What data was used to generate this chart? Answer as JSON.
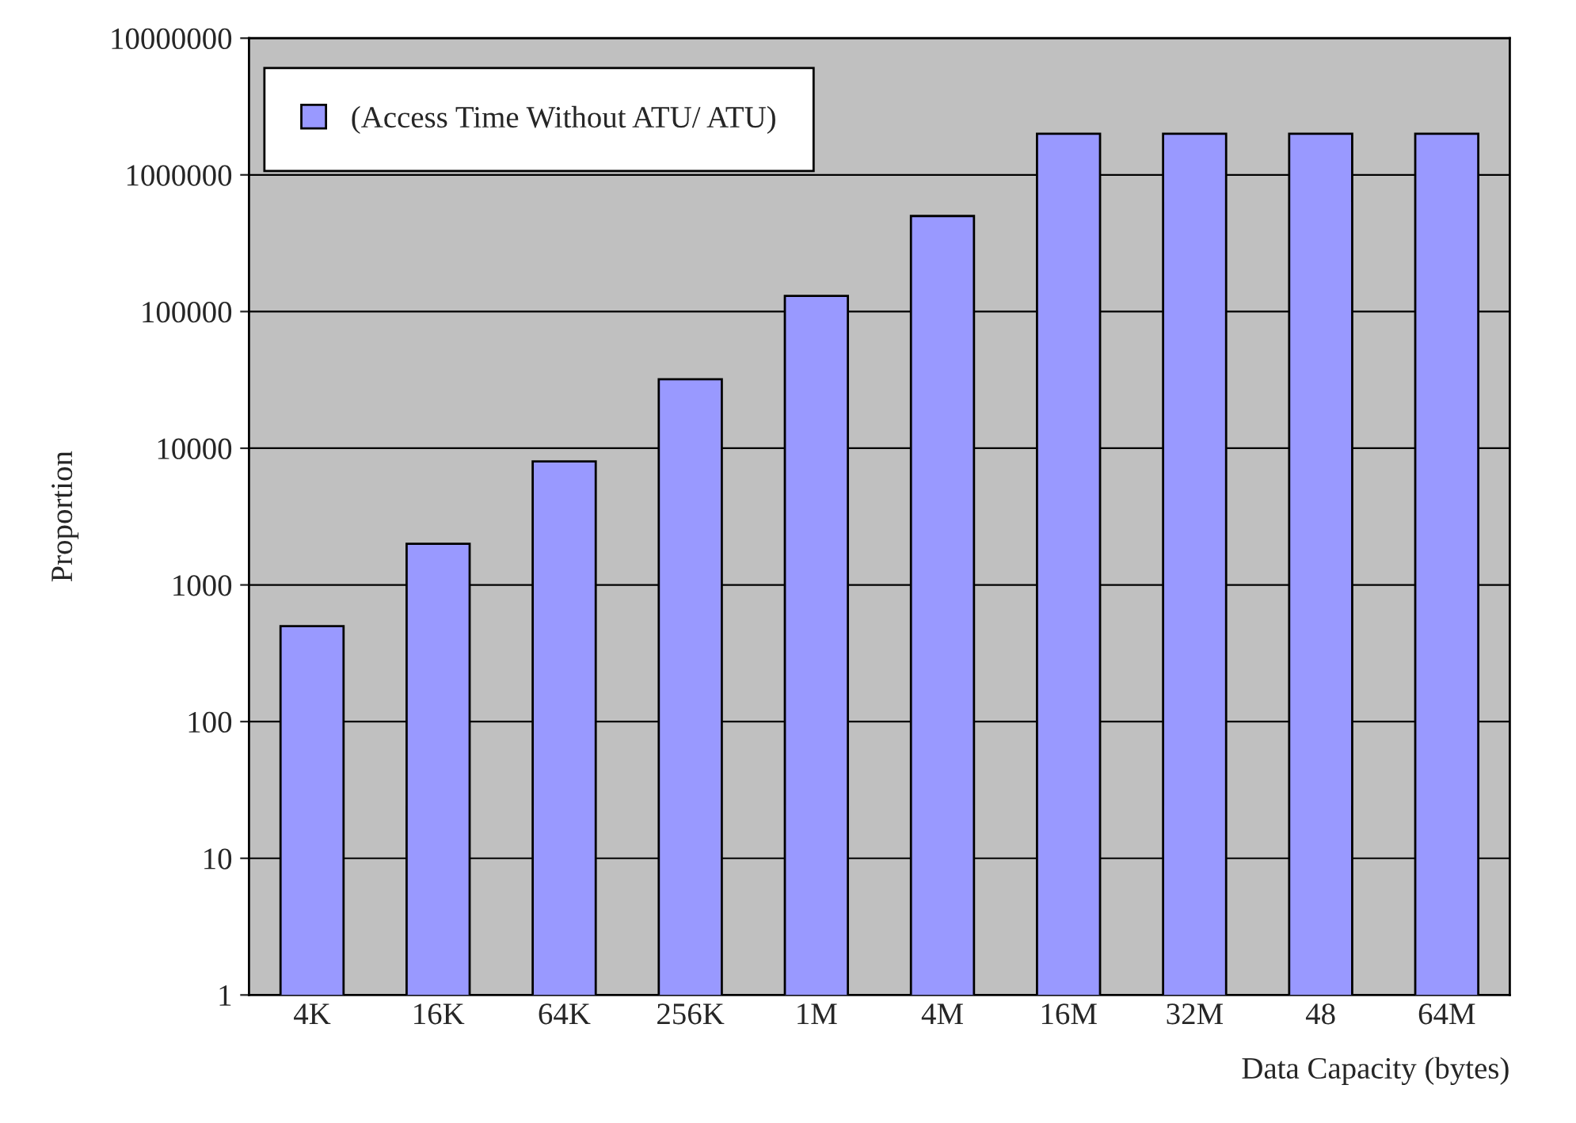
{
  "chart_data": {
    "type": "bar",
    "xlabel": "Data Capacity (bytes)",
    "ylabel": "Proportion",
    "categories": [
      "4K",
      "16K",
      "64K",
      "256K",
      "1M",
      "4M",
      "16M",
      "32M",
      "48",
      "64M"
    ],
    "series": [
      {
        "name": "(Access Time Without ATU/ ATU)",
        "color": "#9999ff",
        "values": [
          500,
          2000,
          8000,
          32000,
          130000,
          500000,
          2000000,
          2000000,
          2000000,
          2000000
        ]
      }
    ],
    "log": "y",
    "ylim": [
      1,
      10000000
    ],
    "yticks": [
      1,
      10,
      100,
      1000,
      10000,
      100000,
      1000000,
      10000000
    ],
    "grid": "y",
    "legend": "top left"
  }
}
